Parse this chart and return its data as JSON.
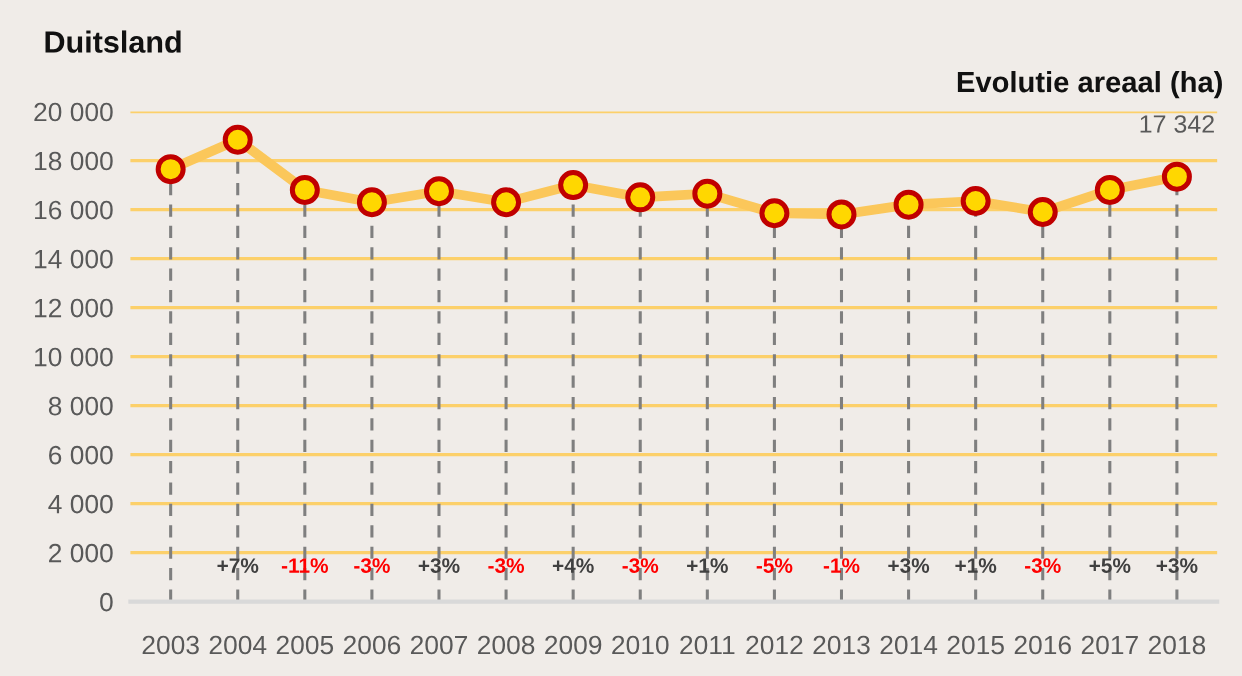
{
  "chart_data": {
    "type": "line",
    "title": "Duitsland",
    "subtitle": "Evolutie areaal (ha)",
    "categories": [
      "2003",
      "2004",
      "2005",
      "2006",
      "2007",
      "2008",
      "2009",
      "2010",
      "2011",
      "2012",
      "2013",
      "2014",
      "2015",
      "2016",
      "2017",
      "2018"
    ],
    "series": [
      {
        "color": "#fbc75a",
        "values": [
          17650,
          18850,
          16800,
          16300,
          16750,
          16300,
          17000,
          16500,
          16650,
          15850,
          15800,
          16200,
          16350,
          15900,
          16800,
          17342
        ],
        "value_labels": [
          null,
          null,
          null,
          null,
          null,
          null,
          null,
          null,
          null,
          null,
          null,
          null,
          null,
          null,
          null,
          "17 342"
        ]
      }
    ],
    "ylim": [
      0,
      20000
    ],
    "yticks": [
      0,
      {
        "value": 2000,
        "label": "2 000"
      },
      {
        "value": 4000,
        "label": "4 000"
      },
      {
        "value": 6000,
        "label": "6 000"
      },
      {
        "value": 8000,
        "label": "8 000"
      },
      {
        "value": 10000,
        "label": "10 000"
      },
      {
        "value": 12000,
        "label": "12 000"
      },
      {
        "value": 14000,
        "label": "14 000"
      },
      {
        "value": 16000,
        "label": "16 000"
      },
      {
        "value": 18000,
        "label": "18 000"
      },
      {
        "value": 20000,
        "label": "20 000"
      }
    ],
    "grid": true,
    "marker": "circle",
    "line_style": "solid",
    "annotations": [
      "+7%",
      "-11%",
      "-3%",
      "+3%",
      "-3%",
      "+4%",
      "-3%",
      "+1%",
      "-5%",
      "-1%",
      "+3%",
      "+1%",
      "-3%",
      "+5%",
      "+3%"
    ]
  }
}
